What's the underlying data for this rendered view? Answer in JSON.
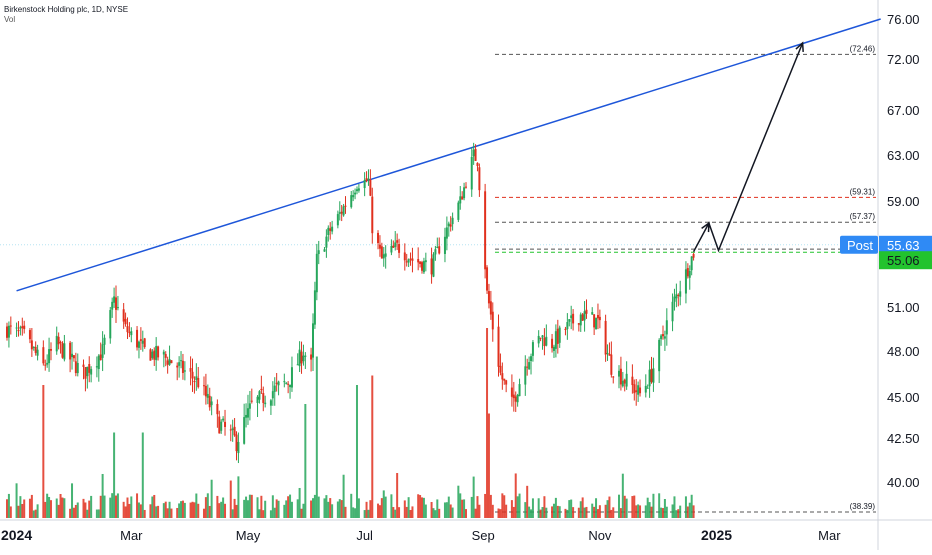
{
  "header": {
    "title": "Birkenstock Holding plc, 1D, NYSE",
    "volume_label": "Vol"
  },
  "price_tags": {
    "post_label": "Post",
    "post_value": "55.63",
    "last_value": "55.06"
  },
  "colors": {
    "up": "#26a65b",
    "down": "#e0301e",
    "trendline": "#1e56d9",
    "post_tag": "#2f8af5",
    "last_tag": "#22c32e"
  },
  "chart_data": {
    "type": "candlestick",
    "symbol": "Birkenstock Holding plc, 1D, NYSE",
    "y_axis": {
      "ticks": [
        "76.00",
        "72.00",
        "67.00",
        "63.00",
        "59.00",
        "55.00",
        "51.00",
        "48.00",
        "45.00",
        "42.50",
        "40.00"
      ],
      "side": "right"
    },
    "x_axis": {
      "ticks": [
        "2024",
        "Mar",
        "May",
        "Jul",
        "Sep",
        "Nov",
        "2025",
        "Mar"
      ]
    },
    "level_labels": [
      "(72.46)",
      "(59.31)",
      "(57.37)",
      "(38.39)"
    ],
    "levels": [
      {
        "label": "(72.46)",
        "value": 72.46,
        "color": "#555555"
      },
      {
        "label": "(59.31)",
        "value": 59.31,
        "color": "#e0301e"
      },
      {
        "label": "(57.37)",
        "value": 57.37,
        "color": "#555555"
      },
      {
        "label": "",
        "value": 55.3,
        "color": "#555555"
      },
      {
        "label": "",
        "value": 55.06,
        "color": "#22c32e"
      },
      {
        "label": "(38.39)",
        "value": 38.39,
        "color": "#555555"
      }
    ],
    "trendline": {
      "start": [
        "2024-01-01",
        52.2
      ],
      "end": [
        "2025-04-01",
        76.0
      ]
    },
    "projection_path": [
      [
        "2024-12-20",
        55.1
      ],
      [
        "2024-12-28",
        57.3
      ],
      [
        "2025-01-02",
        55.2
      ],
      [
        "2025-02-15",
        73.6
      ]
    ],
    "price_waypoints": [
      [
        "2023-12-27",
        49.5
      ],
      [
        "2024-01-05",
        49.0
      ],
      [
        "2024-01-15",
        47.0
      ],
      [
        "2024-01-22",
        48.5
      ],
      [
        "2024-02-05",
        46.5
      ],
      [
        "2024-02-15",
        48.0
      ],
      [
        "2024-02-21",
        51.5
      ],
      [
        "2024-02-27",
        49.5
      ],
      [
        "2024-03-08",
        48.0
      ],
      [
        "2024-03-20",
        47.5
      ],
      [
        "2024-04-05",
        46.0
      ],
      [
        "2024-04-15",
        43.5
      ],
      [
        "2024-04-25",
        42.3
      ],
      [
        "2024-05-03",
        44.5
      ],
      [
        "2024-05-15",
        45.5
      ],
      [
        "2024-05-22",
        46.0
      ],
      [
        "2024-05-30",
        48.0
      ],
      [
        "2024-06-03",
        47.0
      ],
      [
        "2024-06-06",
        54.5
      ],
      [
        "2024-06-12",
        56.5
      ],
      [
        "2024-06-20",
        58.5
      ],
      [
        "2024-06-27",
        60.5
      ],
      [
        "2024-07-03",
        60.8
      ],
      [
        "2024-07-05",
        57.0
      ],
      [
        "2024-07-10",
        54.5
      ],
      [
        "2024-07-18",
        55.5
      ],
      [
        "2024-07-26",
        54.5
      ],
      [
        "2024-08-05",
        54.0
      ],
      [
        "2024-08-12",
        56.5
      ],
      [
        "2024-08-20",
        59.0
      ],
      [
        "2024-08-27",
        63.0
      ],
      [
        "2024-08-29",
        62.5
      ],
      [
        "2024-09-03",
        52.0
      ],
      [
        "2024-09-10",
        46.5
      ],
      [
        "2024-09-16",
        44.5
      ],
      [
        "2024-09-24",
        47.5
      ],
      [
        "2024-10-01",
        49.0
      ],
      [
        "2024-10-07",
        48.5
      ],
      [
        "2024-10-14",
        49.5
      ],
      [
        "2024-10-22",
        50.5
      ],
      [
        "2024-10-31",
        50.0
      ],
      [
        "2024-11-07",
        47.0
      ],
      [
        "2024-11-15",
        46.0
      ],
      [
        "2024-11-22",
        45.2
      ],
      [
        "2024-11-28",
        46.5
      ],
      [
        "2024-12-05",
        49.5
      ],
      [
        "2024-12-10",
        51.5
      ],
      [
        "2024-12-16",
        53.5
      ],
      [
        "2024-12-20",
        55.0
      ]
    ],
    "volume_spikes": [
      [
        "2024-01-15",
        1.4
      ],
      [
        "2024-02-21",
        0.9
      ],
      [
        "2024-03-07",
        0.9
      ],
      [
        "2024-05-31",
        1.2
      ],
      [
        "2024-06-06",
        1.7
      ],
      [
        "2024-06-27",
        1.4
      ],
      [
        "2024-07-05",
        1.5
      ],
      [
        "2024-09-03",
        2.0
      ],
      [
        "2024-09-04",
        1.1
      ]
    ]
  }
}
